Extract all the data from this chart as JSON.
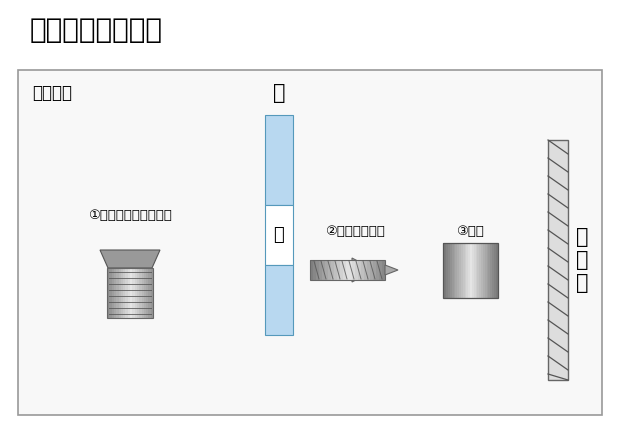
{
  "title": "取付方法について",
  "subtitle": "部品解説",
  "label_board": "板",
  "label_hole": "穴",
  "label_screw1": "①キャップ付き中ネジ",
  "label_screw2": "②胴体固定ネジ",
  "label_body": "③胴体",
  "label_wall": "設\n置\n面",
  "bg_color": "#ffffff",
  "box_bg": "#ffffff",
  "box_border": "#aaaaaa",
  "board_color": "#b8d8f0",
  "wall_color": "#cccccc",
  "screw_color_light": "#e0e0e0",
  "screw_color_dark": "#888888",
  "screw_color_mid": "#b0b0b0"
}
